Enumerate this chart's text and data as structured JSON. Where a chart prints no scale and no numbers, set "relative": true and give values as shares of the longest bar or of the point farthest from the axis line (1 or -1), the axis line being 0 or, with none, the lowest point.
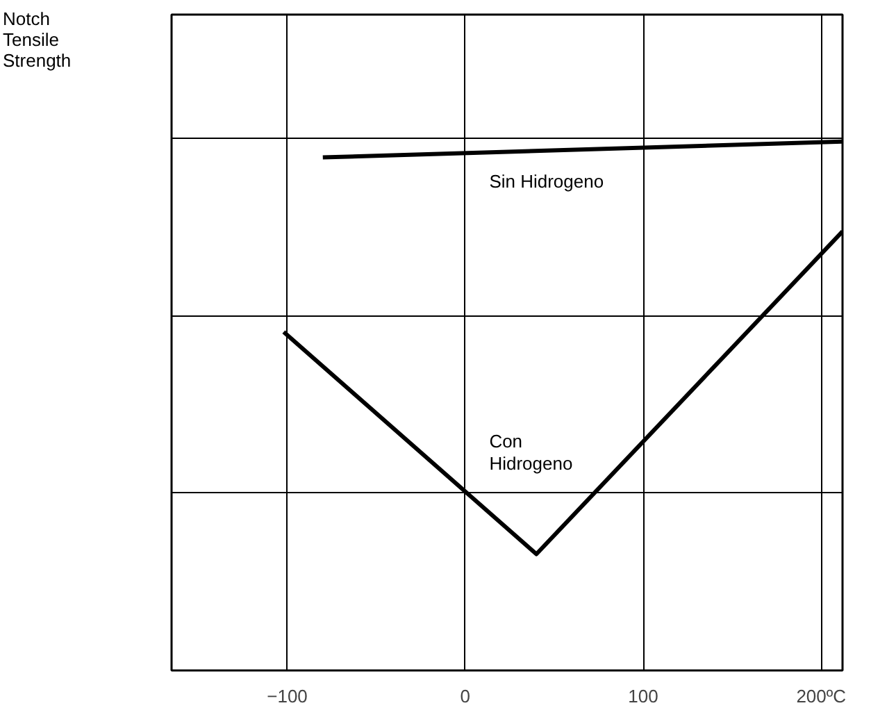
{
  "chart_data": {
    "type": "line",
    "relative": true,
    "annotations": [
      "Notch Tensile Strength"
    ],
    "xlim": [
      -165,
      212
    ],
    "xticks": [
      -100,
      0,
      {
        "value": 200,
        "label": "200ºC"
      },
      100
    ],
    "grid": true,
    "line_style": "solid",
    "marker": "none",
    "series": [
      {
        "name": "Sin Hidrogeno",
        "color": "#000000",
        "x": [
          -80,
          212
        ],
        "values": [
          0.97,
          1.0
        ]
      },
      {
        "name": "Con Hidrogeno",
        "color": "#000000",
        "x": [
          -102,
          40,
          212
        ],
        "values": [
          0.64,
          0.22,
          0.83
        ]
      }
    ]
  }
}
